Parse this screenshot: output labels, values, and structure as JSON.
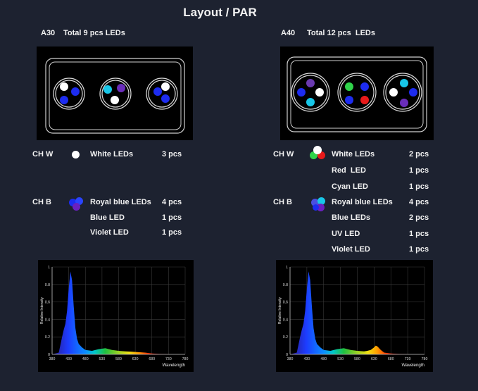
{
  "title": "Layout / PAR",
  "left": {
    "model": "A30",
    "total": "Total 9 pcs LEDs",
    "channels": [
      {
        "ch": "CH W",
        "rows": [
          {
            "name": "White LEDs",
            "count": "3 pcs"
          }
        ]
      },
      {
        "ch": "CH B",
        "rows": [
          {
            "name": "Royal blue LEDs",
            "count": "4 pcs"
          },
          {
            "name": "Blue LED",
            "count": "1 pcs"
          },
          {
            "name": "Violet LED",
            "count": "1 pcs"
          }
        ]
      }
    ],
    "chart_data": {
      "type": "line",
      "title": "",
      "xlabel": "Wavelength",
      "ylabel": "Relative Intensity",
      "xlim": [
        380,
        780
      ],
      "ylim": [
        0,
        1
      ],
      "xticks": [
        "380",
        "430",
        "480",
        "530",
        "580",
        "630",
        "680",
        "730",
        "780"
      ],
      "yticks": [
        "0",
        "0.2",
        "0.4",
        "0.6",
        "0.8",
        "1"
      ],
      "x": [
        380,
        400,
        410,
        415,
        420,
        425,
        430,
        435,
        440,
        445,
        450,
        455,
        460,
        470,
        480,
        500,
        520,
        540,
        560,
        580,
        600,
        620,
        640,
        660,
        680,
        700,
        740,
        780
      ],
      "y": [
        0,
        0.02,
        0.2,
        0.28,
        0.35,
        0.5,
        0.75,
        0.95,
        0.85,
        0.55,
        0.3,
        0.18,
        0.12,
        0.08,
        0.05,
        0.04,
        0.06,
        0.07,
        0.05,
        0.04,
        0.035,
        0.03,
        0.025,
        0.02,
        0.01,
        0.005,
        0,
        0
      ]
    }
  },
  "right": {
    "model": "A40",
    "total": "Total 12 pcs  LEDs",
    "channels": [
      {
        "ch": "CH W",
        "rows": [
          {
            "name": "White LEDs",
            "count": "2 pcs"
          },
          {
            "name": "Red  LED",
            "count": "1 pcs"
          },
          {
            "name": "Cyan LED",
            "count": "1 pcs"
          }
        ]
      },
      {
        "ch": "CH B",
        "rows": [
          {
            "name": "Royal blue LEDs",
            "count": "4 pcs"
          },
          {
            "name": "Blue LEDs",
            "count": "2 pcs"
          },
          {
            "name": "UV LED",
            "count": "1 pcs"
          },
          {
            "name": "Violet LED",
            "count": "1 pcs"
          }
        ]
      }
    ],
    "chart_data": {
      "type": "line",
      "title": "",
      "xlabel": "Wavelength",
      "ylabel": "Relative Intensity",
      "xlim": [
        380,
        780
      ],
      "ylim": [
        0,
        1
      ],
      "xticks": [
        "380",
        "430",
        "480",
        "530",
        "580",
        "630",
        "680",
        "730",
        "780"
      ],
      "yticks": [
        "0",
        "0.2",
        "0.4",
        "0.6",
        "0.8",
        "1"
      ],
      "x": [
        380,
        400,
        410,
        415,
        420,
        425,
        430,
        435,
        440,
        445,
        450,
        455,
        460,
        470,
        480,
        500,
        520,
        540,
        560,
        580,
        600,
        610,
        620,
        630,
        635,
        640,
        650,
        660,
        680,
        700,
        740,
        780
      ],
      "y": [
        0,
        0.02,
        0.2,
        0.28,
        0.35,
        0.5,
        0.75,
        0.95,
        0.85,
        0.55,
        0.3,
        0.18,
        0.12,
        0.08,
        0.05,
        0.04,
        0.06,
        0.07,
        0.05,
        0.04,
        0.035,
        0.04,
        0.05,
        0.08,
        0.1,
        0.09,
        0.05,
        0.02,
        0.01,
        0.005,
        0,
        0
      ]
    }
  }
}
